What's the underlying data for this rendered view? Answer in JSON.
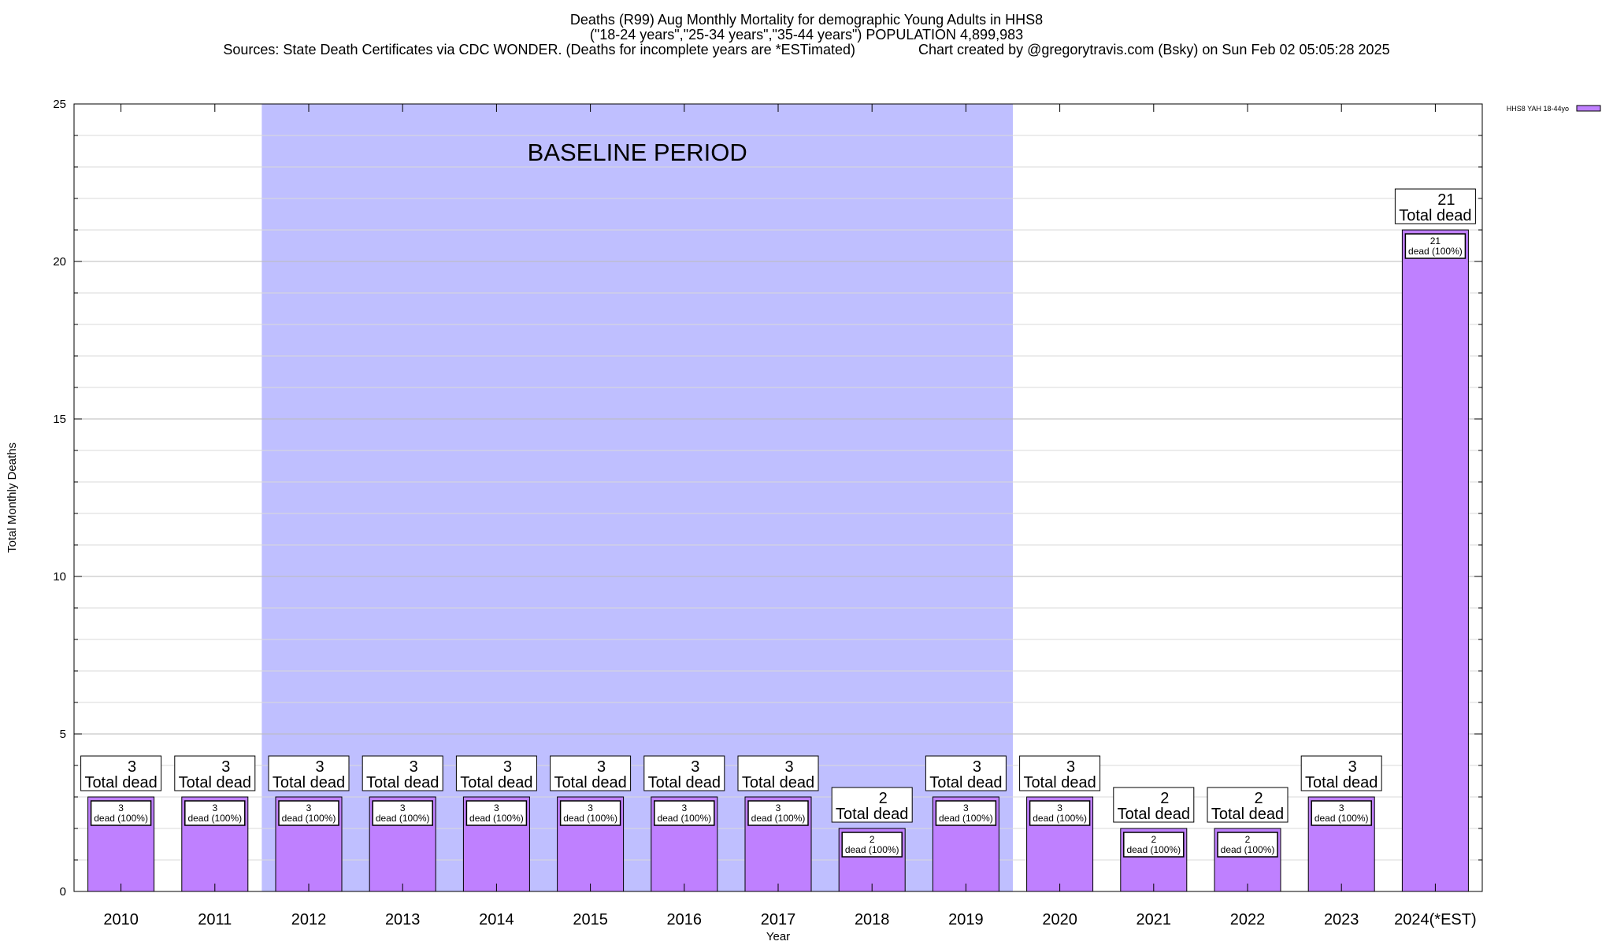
{
  "header": {
    "title_line1": "Deaths (R99) Aug Monthly Mortality for demographic Young Adults in HHS8",
    "title_line2": "(\"18-24 years\",\"25-34 years\",\"35-44 years\") POPULATION 4,899,983",
    "title_line3": "Sources: State Death Certificates via CDC WONDER. (Deaths for incomplete years are *ESTimated)                Chart created by @gregorytravis.com (Bsky) on Sun Feb 02 05:05:28 2025"
  },
  "chart_data": {
    "type": "bar",
    "xlabel": "Year",
    "ylabel": "Total Monthly Deaths",
    "ylim": [
      0,
      25
    ],
    "y_ticks": [
      0,
      5,
      10,
      15,
      20,
      25
    ],
    "categories": [
      "2010",
      "2011",
      "2012",
      "2013",
      "2014",
      "2015",
      "2016",
      "2017",
      "2018",
      "2019",
      "2020",
      "2021",
      "2022",
      "2023",
      "2024(*EST)"
    ],
    "series": [
      {
        "name": "HHS8 YAH 18-44yo",
        "color": "#bf80ff",
        "values": [
          3,
          3,
          3,
          3,
          3,
          3,
          3,
          3,
          2,
          3,
          3,
          2,
          2,
          3,
          21
        ]
      }
    ],
    "total_label_suffix": "Total dead",
    "inner_label_suffix": "dead (100%)",
    "baseline": {
      "label": "BASELINE PERIOD",
      "from_category": "2012",
      "to_category": "2019",
      "color": "#bfbfff"
    },
    "legend_position": "top-right",
    "grid": "horizontal"
  }
}
